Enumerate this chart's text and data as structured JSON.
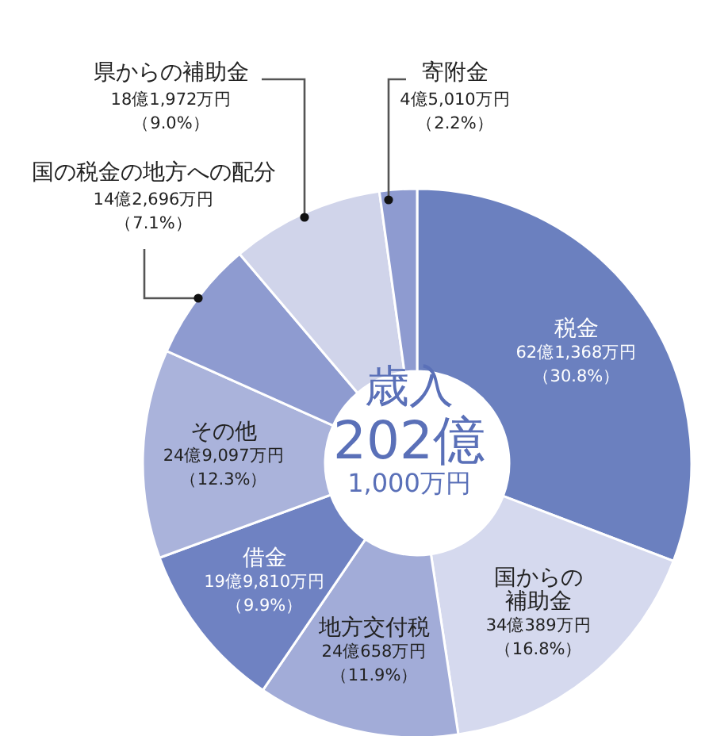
{
  "chart_data": {
    "type": "donut",
    "title": "歳入",
    "subtitle": "202億",
    "annotations": [
      "1,000万円"
    ],
    "categories": [
      "税金",
      "国からの補助金",
      "地方交付税",
      "借金",
      "その他",
      "国の税金の地方への配分",
      "県からの補助金",
      "寄附金"
    ],
    "values": [
      30.8,
      16.8,
      11.9,
      9.9,
      12.3,
      7.1,
      9.0,
      2.2
    ],
    "colors": [
      "#6b80bf",
      "#d5d9ee",
      "#a2acd8",
      "#6f82c2",
      "#aab3db",
      "#8e9bd0",
      "#d0d4ea",
      "#8e9bd0"
    ],
    "value_labels": [
      "62億1,368万円（30.8%）",
      "34億389万円（16.8%）",
      "24億658万円（11.9%）",
      "19億9,810万円（9.9%）",
      "24億9,097万円（12.3%）",
      "14億2,696万円（7.1%）",
      "18億1,972万円（9.0%）",
      "4億5,010万円（2.2%）"
    ]
  }
}
